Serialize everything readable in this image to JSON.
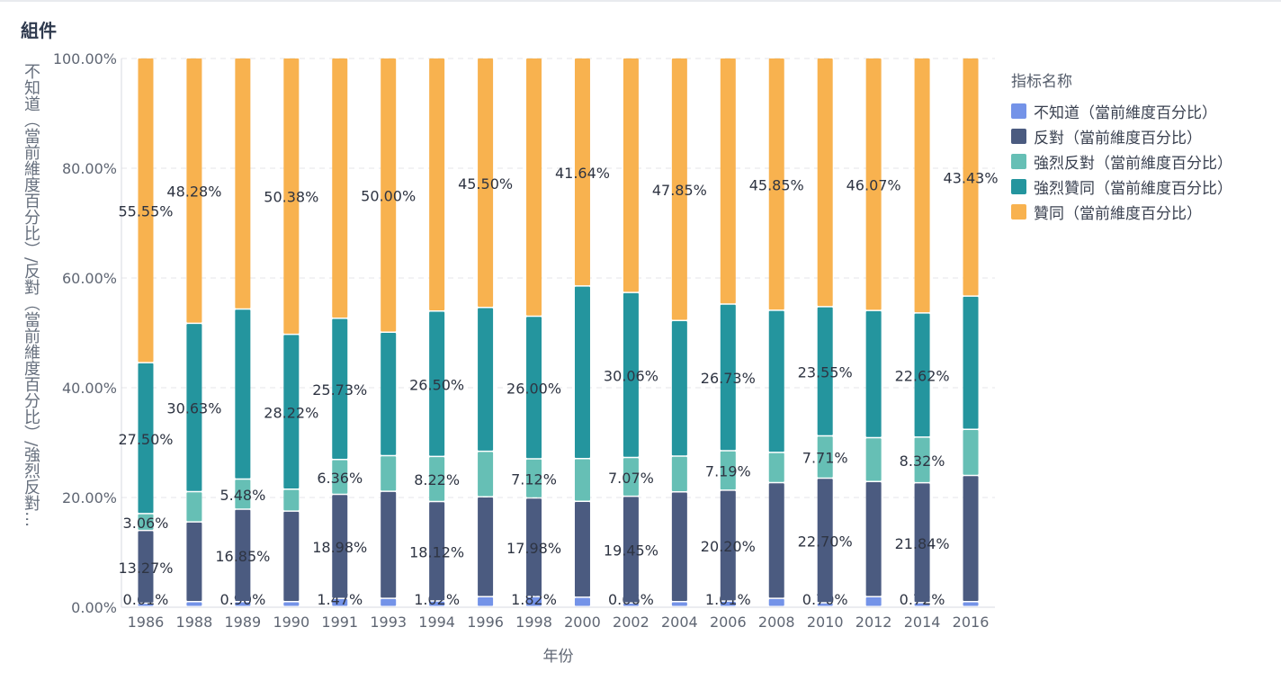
{
  "panel": {
    "title": "組件"
  },
  "legend": {
    "title": "指标名称"
  },
  "chart_data": {
    "type": "bar",
    "stacked": true,
    "normalized": true,
    "xlabel": "年份",
    "ylabel": "不知道（當前維度百分比）/反對（當前維度百分比）/強烈反對…",
    "ylim": [
      0,
      100
    ],
    "yticks": [
      "0.00%",
      "20.00%",
      "40.00%",
      "60.00%",
      "80.00%",
      "100.00%"
    ],
    "grid": true,
    "legend_position": "right",
    "categories": [
      "1986",
      "1988",
      "1989",
      "1990",
      "1991",
      "1993",
      "1994",
      "1996",
      "1998",
      "2000",
      "2002",
      "2004",
      "2006",
      "2008",
      "2010",
      "2012",
      "2014",
      "2016"
    ],
    "series": [
      {
        "name": "不知道（當前維度百分比）",
        "color": "#7493e8",
        "values": [
          0.61,
          0.9,
          0.9,
          0.9,
          1.47,
          1.5,
          1.02,
          1.8,
          1.82,
          1.7,
          0.66,
          0.9,
          1.01,
          1.5,
          0.7,
          1.8,
          0.72,
          0.9
        ],
        "labels": [
          "0.61%",
          "",
          "0.90%",
          "",
          "1.47%",
          "",
          "1.02%",
          "",
          "1.82%",
          "",
          "0.66%",
          "",
          "1.01%",
          "",
          "0.70%",
          "",
          "0.72%",
          ""
        ]
      },
      {
        "name": "反對（當前維度百分比）",
        "color": "#4b5b80",
        "values": [
          13.27,
          14.5,
          16.85,
          16.5,
          18.98,
          19.5,
          18.12,
          18.2,
          17.98,
          17.5,
          19.45,
          20.0,
          20.2,
          21.0,
          22.7,
          21.0,
          21.84,
          23.0
        ],
        "labels": [
          "13.27%",
          "",
          "16.85%",
          "",
          "18.98%",
          "",
          "18.12%",
          "",
          "17.98%",
          "",
          "19.45%",
          "",
          "20.20%",
          "",
          "22.70%",
          "",
          "21.84%",
          ""
        ]
      },
      {
        "name": "強烈反對（當前維度百分比）",
        "color": "#66bfb5",
        "values": [
          3.06,
          5.5,
          5.48,
          4.0,
          6.36,
          6.5,
          8.22,
          8.3,
          7.12,
          7.8,
          7.07,
          6.5,
          7.19,
          5.5,
          7.71,
          8.0,
          8.32,
          8.4
        ],
        "labels": [
          "3.06%",
          "",
          "5.48%",
          "",
          "6.36%",
          "",
          "8.22%",
          "",
          "7.12%",
          "",
          "7.07%",
          "",
          "7.19%",
          "",
          "7.71%",
          "",
          "8.32%",
          ""
        ]
      },
      {
        "name": "強烈贊同（當前維度百分比）",
        "color": "#24959e",
        "values": [
          27.5,
          30.63,
          31.0,
          28.22,
          25.73,
          22.5,
          26.5,
          26.2,
          26.0,
          31.5,
          30.06,
          24.7,
          26.73,
          25.8,
          23.55,
          23.2,
          22.62,
          24.3
        ],
        "labels": [
          "27.50%",
          "30.63%",
          "",
          "28.22%",
          "25.73%",
          "",
          "26.50%",
          "",
          "26.00%",
          "",
          "30.06%",
          "",
          "26.73%",
          "",
          "23.55%",
          "",
          "22.62%",
          ""
        ]
      },
      {
        "name": "贊同（當前維度百分比）",
        "color": "#f8b24f",
        "values": [
          55.55,
          48.28,
          45.77,
          50.38,
          47.46,
          50.0,
          46.14,
          45.5,
          47.08,
          41.64,
          42.76,
          47.85,
          44.87,
          45.85,
          45.34,
          46.07,
          46.5,
          43.43
        ],
        "labels": [
          "55.55%",
          "48.28%",
          "",
          "50.38%",
          "",
          "50.00%",
          "",
          "45.50%",
          "",
          "41.64%",
          "",
          "47.85%",
          "",
          "45.85%",
          "",
          "46.07%",
          "",
          "43.43%"
        ]
      }
    ]
  }
}
